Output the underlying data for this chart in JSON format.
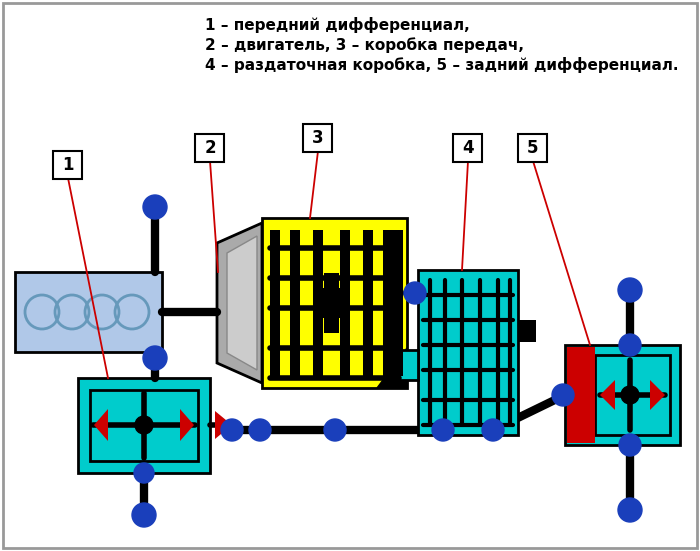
{
  "legend": [
    "1 – передний дифференциал,",
    "2 – двигатель, 3 – коробка передач,",
    "4 – раздаточная коробка, 5 – задний дифференциал."
  ],
  "cyan": "#00cccc",
  "yellow": "#ffff00",
  "blue": "#1a3fbb",
  "red": "#cc0000",
  "black": "#000000",
  "white": "#ffffff",
  "lt_blue": "#b0c8e8",
  "gray": "#888888",
  "border_gray": "#999999"
}
